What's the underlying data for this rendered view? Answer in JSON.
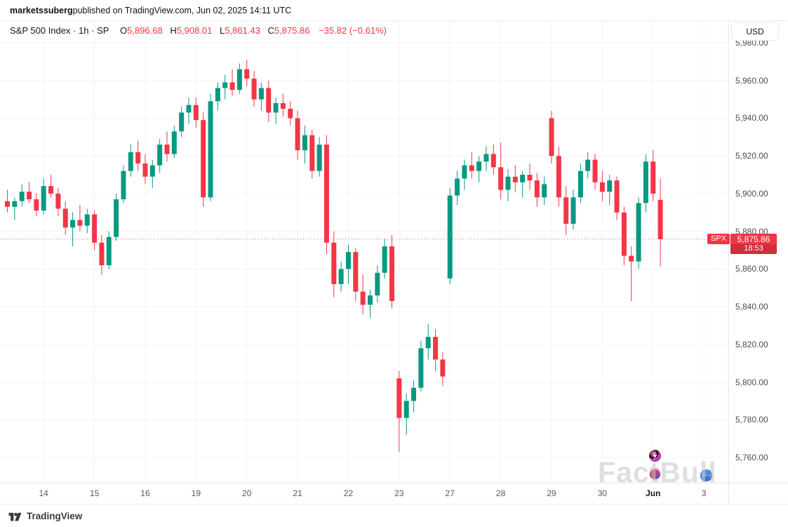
{
  "attribution": {
    "author": "marketssuberg",
    "text": " published on TradingView.com, Jun 02, 2025 14:11 UTC"
  },
  "legend": {
    "title": "S&P 500 Index · 1h · SP",
    "o_label": "O",
    "o_value": "5,896.68",
    "h_label": "H",
    "h_value": "5,908.01",
    "l_label": "L",
    "l_value": "5,861.43",
    "c_label": "C",
    "c_value": "5,875.86",
    "change": "−35.82 (−0.61%)"
  },
  "currency_button": "USD",
  "price_label": {
    "symbol": "SPX",
    "price": "5,875.86",
    "countdown": "18:53"
  },
  "footer": {
    "brand": "TradingView"
  },
  "watermark": {
    "text": "FactBull",
    "icons": [
      "spark-icon",
      "sphere-icon",
      "globe-icon"
    ]
  },
  "colors": {
    "up": "#089981",
    "down": "#f23645",
    "grid": "#f0f3fa",
    "axis_text": "#4a4e53",
    "badge": "#f23645",
    "separator": "#e0e3eb"
  },
  "chart_data": {
    "type": "candlestick",
    "title": "S&P 500 Index",
    "interval": "1h",
    "exchange": "SP",
    "currency": "USD",
    "last_price": 5875.86,
    "last_candle_ohlc": {
      "open": 5896.68,
      "high": 5908.01,
      "low": 5861.43,
      "close": 5875.86,
      "change": -35.82,
      "change_pct": -0.61
    },
    "ylim": [
      5750,
      5990
    ],
    "y_ticks": [
      5980,
      5960,
      5940,
      5920,
      5900,
      5880,
      5860,
      5840,
      5820,
      5800,
      5780,
      5760
    ],
    "price_axis_labels": [
      "5,980.00",
      "5,960.00",
      "5,940.00",
      "5,920.00",
      "5,900.00",
      "5,880.00",
      "5,860.00",
      "5,840.00",
      "5,820.00",
      "5,800.00",
      "5,780.00",
      "5,760.00"
    ],
    "time_axis": [
      {
        "label": "14",
        "i": 5
      },
      {
        "label": "15",
        "i": 12
      },
      {
        "label": "16",
        "i": 19
      },
      {
        "label": "19",
        "i": 26
      },
      {
        "label": "20",
        "i": 33
      },
      {
        "label": "21",
        "i": 40
      },
      {
        "label": "22",
        "i": 47
      },
      {
        "label": "23",
        "i": 54
      },
      {
        "label": "27",
        "i": 61
      },
      {
        "label": "28",
        "i": 68
      },
      {
        "label": "29",
        "i": 75
      },
      {
        "label": "30",
        "i": 82
      },
      {
        "label": "Jun",
        "i": 89,
        "bold": true
      },
      {
        "label": "3",
        "i": 96
      }
    ],
    "candles": [
      [
        5896,
        5902,
        5890,
        5893
      ],
      [
        5893,
        5898,
        5886,
        5896
      ],
      [
        5896,
        5905,
        5893,
        5901
      ],
      [
        5901,
        5906,
        5895,
        5897
      ],
      [
        5897,
        5900,
        5888,
        5891
      ],
      [
        5891,
        5908,
        5889,
        5904
      ],
      [
        5904,
        5910,
        5898,
        5900
      ],
      [
        5900,
        5903,
        5888,
        5892
      ],
      [
        5892,
        5896,
        5878,
        5882
      ],
      [
        5882,
        5890,
        5872,
        5886
      ],
      [
        5886,
        5894,
        5880,
        5883
      ],
      [
        5883,
        5892,
        5879,
        5889
      ],
      [
        5889,
        5891,
        5870,
        5874
      ],
      [
        5874,
        5878,
        5857,
        5862
      ],
      [
        5862,
        5880,
        5860,
        5877
      ],
      [
        5877,
        5900,
        5875,
        5897
      ],
      [
        5897,
        5915,
        5895,
        5912
      ],
      [
        5912,
        5926,
        5909,
        5922
      ],
      [
        5922,
        5928,
        5912,
        5916
      ],
      [
        5916,
        5921,
        5905,
        5909
      ],
      [
        5909,
        5918,
        5903,
        5915
      ],
      [
        5915,
        5929,
        5911,
        5926
      ],
      [
        5926,
        5933,
        5917,
        5921
      ],
      [
        5921,
        5936,
        5919,
        5933
      ],
      [
        5933,
        5946,
        5930,
        5943
      ],
      [
        5943,
        5951,
        5937,
        5947
      ],
      [
        5947,
        5951,
        5935,
        5939
      ],
      [
        5939,
        5943,
        5893,
        5898
      ],
      [
        5898,
        5953,
        5896,
        5949
      ],
      [
        5949,
        5959,
        5944,
        5956
      ],
      [
        5956,
        5963,
        5950,
        5959
      ],
      [
        5959,
        5966,
        5952,
        5955
      ],
      [
        5955,
        5969,
        5953,
        5966
      ],
      [
        5966,
        5971,
        5957,
        5961
      ],
      [
        5961,
        5965,
        5946,
        5950
      ],
      [
        5950,
        5959,
        5944,
        5956
      ],
      [
        5956,
        5960,
        5938,
        5943
      ],
      [
        5943,
        5951,
        5937,
        5948
      ],
      [
        5948,
        5953,
        5941,
        5945
      ],
      [
        5945,
        5949,
        5936,
        5940
      ],
      [
        5940,
        5944,
        5918,
        5923
      ],
      [
        5923,
        5936,
        5916,
        5931
      ],
      [
        5931,
        5934,
        5908,
        5912
      ],
      [
        5912,
        5930,
        5909,
        5926
      ],
      [
        5926,
        5931,
        5868,
        5874
      ],
      [
        5874,
        5880,
        5845,
        5852
      ],
      [
        5852,
        5864,
        5848,
        5860
      ],
      [
        5860,
        5873,
        5852,
        5869
      ],
      [
        5869,
        5871,
        5843,
        5848
      ],
      [
        5848,
        5857,
        5836,
        5841
      ],
      [
        5841,
        5849,
        5834,
        5846
      ],
      [
        5846,
        5862,
        5842,
        5858
      ],
      [
        5858,
        5876,
        5855,
        5872
      ],
      [
        5872,
        5878,
        5839,
        5843
      ],
      [
        5802,
        5806,
        5763,
        5781
      ],
      [
        5781,
        5794,
        5772,
        5790
      ],
      [
        5790,
        5801,
        5784,
        5797
      ],
      [
        5797,
        5822,
        5795,
        5818
      ],
      [
        5818,
        5831,
        5812,
        5824
      ],
      [
        5824,
        5828,
        5806,
        5812
      ],
      [
        5812,
        5816,
        5798,
        5803
      ],
      [
        5855,
        5903,
        5852,
        5899
      ],
      [
        5899,
        5912,
        5894,
        5908
      ],
      [
        5908,
        5918,
        5902,
        5915
      ],
      [
        5915,
        5922,
        5908,
        5912
      ],
      [
        5912,
        5920,
        5906,
        5917
      ],
      [
        5917,
        5925,
        5912,
        5921
      ],
      [
        5921,
        5926,
        5910,
        5914
      ],
      [
        5914,
        5927,
        5897,
        5902
      ],
      [
        5902,
        5913,
        5896,
        5909
      ],
      [
        5909,
        5915,
        5901,
        5906
      ],
      [
        5906,
        5912,
        5898,
        5910
      ],
      [
        5910,
        5916,
        5902,
        5907
      ],
      [
        5907,
        5911,
        5893,
        5898
      ],
      [
        5898,
        5909,
        5894,
        5905
      ],
      [
        5940,
        5944,
        5916,
        5920
      ],
      [
        5920,
        5925,
        5893,
        5898
      ],
      [
        5898,
        5904,
        5878,
        5884
      ],
      [
        5884,
        5902,
        5881,
        5898
      ],
      [
        5898,
        5916,
        5895,
        5912
      ],
      [
        5912,
        5922,
        5908,
        5918
      ],
      [
        5918,
        5921,
        5902,
        5906
      ],
      [
        5906,
        5912,
        5896,
        5901
      ],
      [
        5901,
        5910,
        5894,
        5907
      ],
      [
        5907,
        5909,
        5886,
        5890
      ],
      [
        5890,
        5893,
        5862,
        5867
      ],
      [
        5867,
        5872,
        5843,
        5864
      ],
      [
        5864,
        5898,
        5860,
        5895
      ],
      [
        5895,
        5921,
        5890,
        5917
      ],
      [
        5917,
        5923,
        5896,
        5900
      ],
      [
        5896.68,
        5908.01,
        5861.43,
        5875.86
      ]
    ]
  }
}
